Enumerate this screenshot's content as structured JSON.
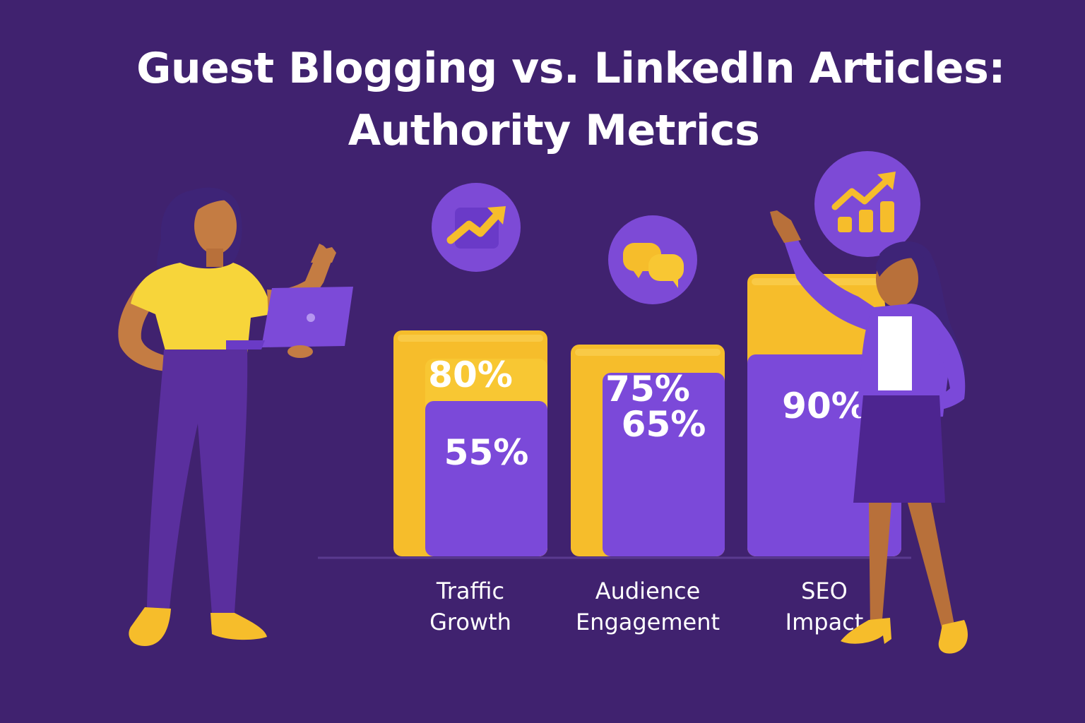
{
  "title_line1": "Guest Blogging vs. LinkedIn Articles:",
  "title_line2": "Authority Metrics",
  "colors": {
    "background": "#40226f",
    "yellow": "#f6bd2b",
    "purple": "#7b49d9",
    "icon_circle": "#7d4ad6",
    "label": "#ffffff"
  },
  "chart_data": {
    "type": "bar",
    "title": "Guest Blogging vs. LinkedIn Articles: Authority Metrics",
    "categories": [
      "Traffic Growth",
      "Audience Engagement",
      "SEO Impact"
    ],
    "category_lines": [
      [
        "Traffic",
        "Growth"
      ],
      [
        "Audience",
        "Engagement"
      ],
      [
        "SEO",
        "Impact"
      ]
    ],
    "series": [
      {
        "color": "#f6bd2b",
        "values": [
          80,
          75,
          100
        ],
        "labels": [
          "80%",
          "75%",
          ""
        ]
      },
      {
        "color": "#7b49d9",
        "values": [
          55,
          65,
          90
        ],
        "labels": [
          "55%",
          "65%",
          "90%"
        ]
      }
    ],
    "icons": [
      "trend-up-arrow-icon",
      "chat-bubbles-icon",
      "bar-chart-growth-icon"
    ],
    "ylim": [
      0,
      100
    ],
    "grid": false,
    "legend": "none"
  }
}
